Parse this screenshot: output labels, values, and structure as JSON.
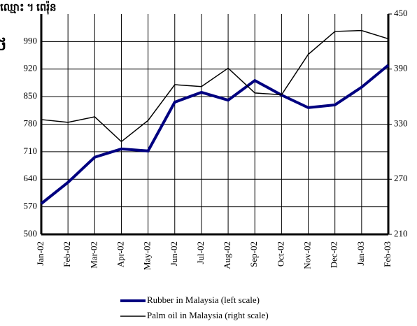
{
  "chart_data": {
    "type": "line",
    "title": "/ឈ្មោះ ។ ពេរ៉ុន",
    "y_label": "ថ",
    "categories": [
      "Jan-02",
      "Feb-02",
      "Mar-02",
      "Apr-02",
      "May-02",
      "Jun-02",
      "Jul-02",
      "Aug-02",
      "Sep-02",
      "Oct-02",
      "Nov-02",
      "Dec-02",
      "Jan-03",
      "Feb-03"
    ],
    "series": [
      {
        "name": "Rubber in Malaysia (left scale)",
        "color": "#000080",
        "axis": "y",
        "values": [
          578,
          632,
          696,
          717,
          712,
          836,
          861,
          841,
          891,
          854,
          822,
          829,
          874,
          930
        ]
      },
      {
        "name": "Palm oil in Malaysia (right scale)",
        "color": "#000000",
        "axis": "y2",
        "values": [
          335,
          332,
          338,
          311,
          334,
          373,
          371,
          391,
          364,
          362,
          406,
          431,
          432,
          423
        ]
      }
    ],
    "ylim": [
      500,
      1060
    ],
    "yticks": [
      500,
      570,
      640,
      710,
      780,
      850,
      920,
      990
    ],
    "y2lim": [
      210,
      450
    ],
    "y2ticks": [
      210,
      270,
      330,
      390,
      450
    ],
    "grid": true,
    "legend": "bottom"
  }
}
